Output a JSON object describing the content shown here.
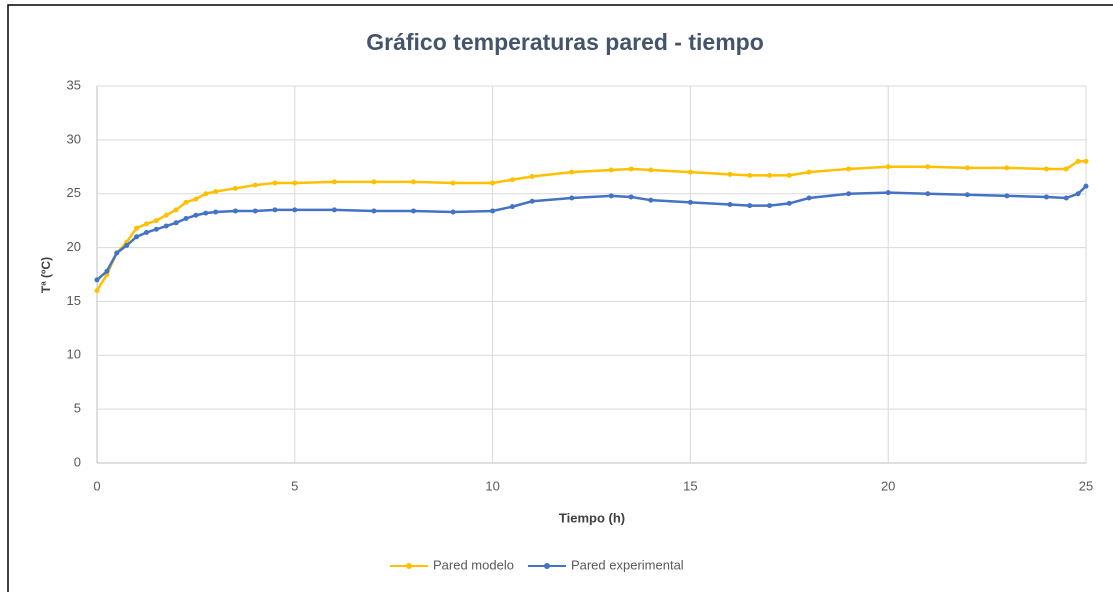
{
  "chart_data": {
    "type": "line",
    "title": "Gráfico temperaturas pared - tiempo",
    "x_label": "Tiempo (h)",
    "y_label": "Tª (ºC)",
    "x": [
      0,
      0.25,
      0.5,
      0.75,
      1,
      1.25,
      1.5,
      1.75,
      2,
      2.25,
      2.5,
      2.75,
      3,
      3.5,
      4,
      4.5,
      5,
      6,
      7,
      8,
      9,
      10,
      10.5,
      11,
      12,
      13,
      13.5,
      14,
      15,
      16,
      16.5,
      17,
      17.5,
      18,
      19,
      20,
      21,
      22,
      23,
      24,
      24.5,
      24.8,
      25
    ],
    "series": [
      {
        "name": "Pared modelo",
        "color": "#FFC000",
        "values": [
          16,
          17.5,
          19.5,
          20.5,
          21.8,
          22.2,
          22.5,
          23,
          23.5,
          24.2,
          24.5,
          25,
          25.2,
          25.5,
          25.8,
          26,
          26,
          26.1,
          26.1,
          26.1,
          26,
          26,
          26.3,
          26.6,
          27,
          27.2,
          27.3,
          27.2,
          27,
          26.8,
          26.7,
          26.7,
          26.7,
          27,
          27.3,
          27.5,
          27.5,
          27.4,
          27.4,
          27.3,
          27.3,
          28,
          28
        ]
      },
      {
        "name": "Pared experimental",
        "color": "#4472C4",
        "values": [
          17,
          17.8,
          19.5,
          20.2,
          21,
          21.4,
          21.7,
          22,
          22.3,
          22.7,
          23,
          23.2,
          23.3,
          23.4,
          23.4,
          23.5,
          23.5,
          23.5,
          23.4,
          23.4,
          23.3,
          23.4,
          23.8,
          24.3,
          24.6,
          24.8,
          24.7,
          24.4,
          24.2,
          24,
          23.9,
          23.9,
          24.1,
          24.6,
          25,
          25.1,
          25,
          24.9,
          24.8,
          24.7,
          24.6,
          25,
          25.7
        ]
      }
    ],
    "xlim": [
      0,
      25
    ],
    "xticks": [
      0,
      5,
      10,
      15,
      20,
      25
    ],
    "ylim": [
      0,
      35
    ],
    "yticks": [
      0,
      5,
      10,
      15,
      20,
      25,
      30,
      35
    ],
    "grid": true,
    "legend": "bottom"
  }
}
